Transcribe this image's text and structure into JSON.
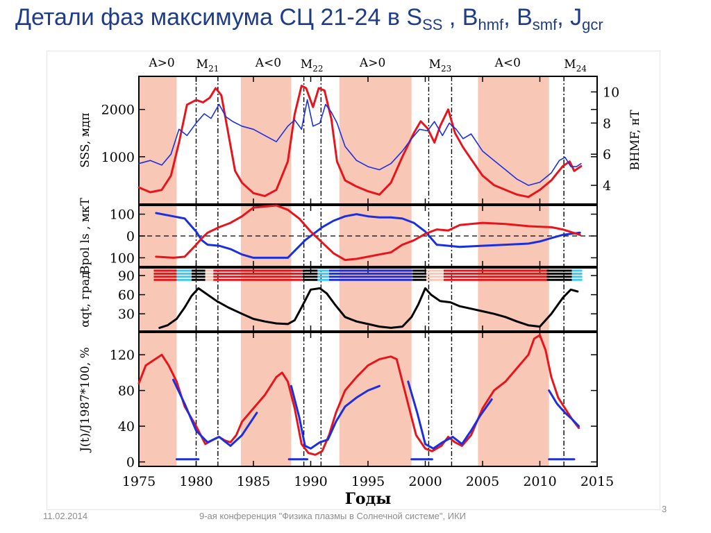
{
  "slide": {
    "title_main": "Детали фаз максимума СЦ 21-24 в S",
    "title_ss": "SS",
    "title_sep1": " , B",
    "title_hmf": "hmf",
    "title_sep2": ", B",
    "title_smf": "smf",
    "title_sep3": ", J",
    "title_gcr": "gcr",
    "footer_date": "11.02.2014",
    "footer_conference": "9-ая конференция \"Физика плазмы в Солнечной системе\", ИКИ",
    "page_number": "3"
  },
  "colors": {
    "title": "#1f3c88",
    "shade": "#f9c7b5",
    "red_series": "#e8141b",
    "blue_series": "#1a2fe0",
    "black_series": "#000000",
    "cyan_marker": "#3cc8f0"
  },
  "chart_data": {
    "type": "line",
    "xlabel": "Годы",
    "xlim": [
      1975,
      2015
    ],
    "xticks": [
      1975,
      1980,
      1985,
      1990,
      1995,
      2000,
      2005,
      2010,
      2015
    ],
    "polarity_labels": [
      {
        "text": "A>0",
        "x": 1977.0
      },
      {
        "text": "A<0",
        "x": 1986.3
      },
      {
        "text": "A>0",
        "x": 1995.4
      },
      {
        "text": "A<0",
        "x": 2007.2
      }
    ],
    "maxima_labels": [
      {
        "main": "M",
        "sub": "21",
        "x": 1981.0
      },
      {
        "main": "M",
        "sub": "22",
        "x": 1990.1
      },
      {
        "main": "M",
        "sub": "23",
        "x": 2001.3
      },
      {
        "main": "M",
        "sub": "24",
        "x": 2013.1
      }
    ],
    "shaded_periods": [
      [
        1975,
        1978.3
      ],
      [
        1983.9,
        1988.3
      ],
      [
        1992.5,
        1998.8
      ],
      [
        2004.6,
        2010.8
      ]
    ],
    "maxima_lines": [
      1980.0,
      1981.9,
      1989.4,
      1990.9,
      2000.3,
      2002.3,
      2012.1
    ],
    "panels": [
      {
        "name": "sunspot-and-hmf",
        "ylabel_left": "SSS, мдп",
        "ylabel_right": "BHMF, нТ",
        "ylim": [
          0,
          2700
        ],
        "yticks": [
          1000,
          2000
        ],
        "right_axis": {
          "ylim": [
            2.8,
            11.0
          ],
          "yticks": [
            4,
            6,
            8,
            10
          ]
        },
        "series": [
          {
            "name": "Sss",
            "color": "red",
            "x": [
              1975,
              1976,
              1977,
              1977.8,
              1978.5,
              1979.2,
              1980,
              1980.6,
              1981.2,
              1981.7,
              1982.2,
              1982.8,
              1983.4,
              1984,
              1985,
              1986,
              1987,
              1988,
              1988.6,
              1989.2,
              1989.6,
              1990.2,
              1990.7,
              1991.2,
              1991.8,
              1992.3,
              1993,
              1994,
              1995,
              1996,
              1997,
              1998,
              1999,
              1999.6,
              2000.2,
              2000.8,
              2001.3,
              2002,
              2002.6,
              2003.3,
              2004,
              2005,
              2006,
              2007,
              2008,
              2009,
              2010,
              2011,
              2012,
              2012.6,
              2013,
              2013.6
            ],
            "y": [
              350,
              250,
              300,
              600,
              1300,
              2100,
              2200,
              2150,
              2250,
              2450,
              2300,
              1500,
              700,
              450,
              230,
              170,
              300,
              900,
              1900,
              2500,
              2450,
              2050,
              2450,
              2400,
              1800,
              900,
              500,
              370,
              270,
              200,
              450,
              1000,
              1500,
              1750,
              1600,
              1300,
              1650,
              2000,
              1500,
              1200,
              950,
              600,
              400,
              300,
              200,
              150,
              300,
              500,
              800,
              900,
              700,
              800
            ]
          },
          {
            "name": "BHMF",
            "color": "blue",
            "right_axis": true,
            "x": [
              1975,
              1976,
              1977,
              1977.8,
              1978.5,
              1979.2,
              1980,
              1980.7,
              1981.3,
              1982,
              1982.6,
              1983.2,
              1984,
              1985,
              1986,
              1987,
              1988,
              1988.6,
              1989.2,
              1989.7,
              1990.2,
              1990.8,
              1991.3,
              1991.8,
              1992.3,
              1993,
              1994,
              1995,
              1996,
              1997,
              1998,
              1998.8,
              1999.5,
              2000.2,
              2000.8,
              2001.5,
              2002.1,
              2002.7,
              2003.3,
              2004,
              2005,
              2006,
              2007,
              2008,
              2009,
              2010,
              2011,
              2011.7,
              2012.2,
              2012.7,
              2013.2,
              2013.6
            ],
            "y": [
              5.4,
              5.6,
              5.3,
              6.0,
              7.6,
              7.2,
              8.0,
              8.6,
              8.3,
              9.2,
              8.4,
              8.1,
              7.8,
              7.6,
              7.2,
              6.8,
              7.8,
              8.2,
              7.6,
              9.5,
              7.8,
              8.0,
              9.2,
              8.7,
              8.0,
              6.5,
              5.6,
              5.2,
              5.0,
              5.4,
              6.2,
              7.0,
              7.6,
              7.5,
              8.1,
              7.2,
              8.0,
              7.6,
              7.0,
              7.3,
              6.2,
              5.6,
              5.0,
              4.4,
              4.0,
              4.2,
              4.8,
              5.6,
              5.8,
              5.2,
              5.2,
              5.4
            ]
          }
        ]
      },
      {
        "name": "polar-field",
        "ylabel_left": "Bpol ls , мкТ",
        "ylim": [
          -140,
          140
        ],
        "yticks": [
          -100,
          0,
          100
        ],
        "tick_labels": [
          "100",
          "0",
          "100"
        ],
        "zero_line": true,
        "series": [
          {
            "name": "north",
            "color": "blue",
            "x": [
              1976.5,
              1978,
              1979,
              1980,
              1980.5,
              1981,
              1982,
              1983,
              1984,
              1985,
              1987,
              1988,
              1989.5,
              1991,
              1992,
              1993,
              1994,
              1995,
              1996,
              1997,
              1998,
              1999,
              2000,
              2001,
              2002,
              2003,
              2005,
              2007,
              2009,
              2010,
              2011,
              2012,
              2013.5
            ],
            "y": [
              105,
              90,
              80,
              20,
              -20,
              -40,
              -45,
              -60,
              -85,
              -100,
              -100,
              -100,
              -20,
              40,
              70,
              90,
              100,
              90,
              85,
              85,
              80,
              60,
              20,
              -40,
              -45,
              -50,
              -45,
              -40,
              -35,
              -25,
              -10,
              5,
              15
            ]
          },
          {
            "name": "south",
            "color": "red",
            "x": [
              1976.5,
              1978,
              1979,
              1980,
              1980.5,
              1981,
              1982,
              1983,
              1984,
              1985,
              1987,
              1988,
              1989,
              1990,
              1991,
              1992,
              1993,
              1994,
              1995,
              1996,
              1997,
              1998,
              1999,
              2000,
              2001,
              2002,
              2003,
              2005,
              2007,
              2009,
              2011,
              2012,
              2013.5
            ],
            "y": [
              -95,
              -100,
              -95,
              -40,
              -10,
              15,
              40,
              60,
              90,
              130,
              140,
              120,
              80,
              20,
              -30,
              -80,
              -110,
              -105,
              -95,
              -85,
              -75,
              -40,
              -20,
              10,
              30,
              25,
              50,
              60,
              55,
              45,
              40,
              30,
              5
            ]
          }
        ]
      },
      {
        "name": "tilt-angle",
        "ylabel_left": "αqt, град",
        "ylim": [
          3,
          102
        ],
        "yticks": [
          30,
          60,
          90
        ],
        "series": [
          {
            "name": "tilt",
            "color": "black",
            "x": [
              1976.8,
              1977.5,
              1978.3,
              1979,
              1979.6,
              1980.2,
              1981,
              1981.8,
              1982.8,
              1984,
              1985,
              1986,
              1987,
              1988,
              1988.6,
              1989.2,
              1990,
              1990.8,
              1991.4,
              1992.1,
              1993,
              1994,
              1995,
              1996,
              1997,
              1998,
              1998.8,
              1999.4,
              2000,
              2000.5,
              2001.3,
              2002.2,
              2003,
              2004,
              2005,
              2006,
              2007,
              2008,
              2009,
              2010,
              2011,
              2012,
              2012.7,
              2013.3
            ],
            "y": [
              8,
              12,
              22,
              40,
              58,
              70,
              60,
              50,
              40,
              30,
              22,
              18,
              15,
              14,
              20,
              40,
              68,
              70,
              62,
              45,
              25,
              18,
              14,
              10,
              8,
              10,
              25,
              45,
              70,
              60,
              50,
              48,
              42,
              38,
              34,
              30,
              25,
              18,
              12,
              10,
              30,
              55,
              68,
              65
            ]
          }
        ],
        "polarity_band": {
          "rows": 4,
          "segments": [
            {
              "x0": 1976.3,
              "x1": 1978.3,
              "color": "red"
            },
            {
              "x0": 1978.3,
              "x1": 1979.6,
              "color": "cyan"
            },
            {
              "x0": 1979.6,
              "x1": 1980.8,
              "color": "black"
            },
            {
              "x0": 1980.8,
              "x1": 1981.5,
              "color": "shade"
            },
            {
              "x0": 1981.5,
              "x1": 1989.3,
              "color": "red"
            },
            {
              "x0": 1989.3,
              "x1": 1990.6,
              "color": "black"
            },
            {
              "x0": 1990.6,
              "x1": 1991.6,
              "color": "cyan"
            },
            {
              "x0": 1991.6,
              "x1": 1998.9,
              "color": "blue"
            },
            {
              "x0": 1998.9,
              "x1": 2000.1,
              "color": "black"
            },
            {
              "x0": 2000.1,
              "x1": 2001.6,
              "color": "shade"
            },
            {
              "x0": 2001.6,
              "x1": 2010.6,
              "color": "red"
            },
            {
              "x0": 2010.6,
              "x1": 2012.8,
              "color": "black"
            },
            {
              "x0": 2012.8,
              "x1": 2013.7,
              "color": "cyan"
            }
          ]
        }
      },
      {
        "name": "cosmic-rays",
        "ylabel_left": "J(t)/J1987*100, %",
        "ylim": [
          -5,
          145
        ],
        "yticks": [
          0,
          40,
          80,
          120
        ],
        "series": [
          {
            "name": "observed",
            "color": "red",
            "x": [
              1975,
              1975.6,
              1976.3,
              1977,
              1977.6,
              1978.3,
              1979,
              1980,
              1980.8,
              1981.5,
              1982,
              1982.5,
              1983,
              1983.5,
              1984,
              1985,
              1986,
              1987,
              1987.5,
              1988,
              1988.6,
              1989.2,
              1989.8,
              1990.4,
              1991,
              1991.6,
              1992.2,
              1993,
              1994,
              1995,
              1996,
              1997,
              1997.5,
              1998,
              1998.6,
              1999.2,
              2000,
              2000.6,
              2001.4,
              2002,
              2002.6,
              2003.2,
              2004,
              2004.5,
              2005,
              2006,
              2007,
              2008,
              2009,
              2009.5,
              2010,
              2010.5,
              2011,
              2011.6,
              2012.2,
              2012.8,
              2013.4
            ],
            "y": [
              88,
              108,
              114,
              120,
              108,
              90,
              62,
              40,
              20,
              25,
              28,
              24,
              22,
              30,
              45,
              60,
              75,
              95,
              100,
              90,
              60,
              20,
              10,
              8,
              12,
              30,
              55,
              80,
              95,
              108,
              115,
              118,
              115,
              90,
              60,
              30,
              15,
              12,
              18,
              28,
              22,
              18,
              30,
              45,
              60,
              80,
              90,
              105,
              120,
              138,
              142,
              125,
              95,
              72,
              60,
              48,
              38
            ]
          },
          {
            "name": "model-M21",
            "color": "blue",
            "x": [
              1978,
              1979,
              1980,
              1981,
              1982,
              1983,
              1984,
              1985.3
            ],
            "y": [
              92,
              65,
              35,
              22,
              28,
              18,
              30,
              55
            ]
          },
          {
            "name": "model-M22",
            "color": "blue",
            "x": [
              1988.3,
              1989,
              1989.5,
              1990,
              1990.8,
              1991.5,
              1992.2,
              1993,
              1994,
              1995,
              1996
            ],
            "y": [
              85,
              50,
              18,
              15,
              22,
              25,
              45,
              62,
              72,
              80,
              85
            ]
          },
          {
            "name": "model-M23",
            "color": "blue",
            "x": [
              1998.5,
              1999.3,
              2000,
              2000.7,
              2001.5,
              2002.4,
              2003.2,
              2004,
              2004.8,
              2005.8
            ],
            "y": [
              90,
              55,
              20,
              15,
              22,
              28,
              20,
              35,
              52,
              70
            ]
          },
          {
            "name": "model-M24",
            "color": "blue",
            "x": [
              2010.8,
              2011.5,
              2012.2,
              2012.8,
              2013.4
            ],
            "y": [
              80,
              65,
              55,
              48,
              40
            ]
          },
          {
            "name": "solar-min-bars",
            "color": "blue",
            "segments": true,
            "x": [
              [
                1978.3,
                1980.2
              ],
              [
                1988.1,
                1989.7
              ],
              [
                1998.8,
                2000.6
              ],
              [
                2010.8,
                2013.0
              ]
            ],
            "y": [
              [
                3,
                3
              ],
              [
                3,
                3
              ],
              [
                3,
                3
              ],
              [
                3,
                3
              ]
            ]
          }
        ]
      }
    ]
  }
}
